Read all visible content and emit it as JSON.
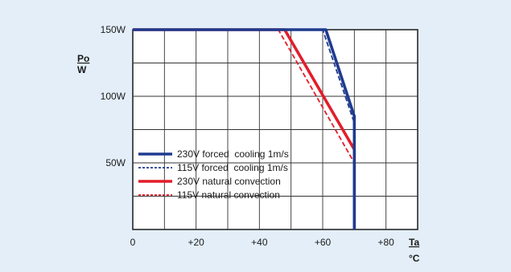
{
  "chart_data": {
    "type": "line",
    "title": "",
    "xlabel": "Ta",
    "xunit": "°C",
    "ylabel": "Po",
    "yunit": "W",
    "xlim": [
      0,
      90
    ],
    "ylim": [
      0,
      150
    ],
    "x_ticks": [
      {
        "value": 0,
        "label": "0"
      },
      {
        "value": 20,
        "label": "+20"
      },
      {
        "value": 40,
        "label": "+40"
      },
      {
        "value": 60,
        "label": "+60"
      },
      {
        "value": 80,
        "label": "+80"
      }
    ],
    "y_ticks": [
      {
        "value": 50,
        "label": "50W"
      },
      {
        "value": 100,
        "label": "100W"
      },
      {
        "value": 150,
        "label": "150W"
      }
    ],
    "grid": true,
    "legend_position": "lower-left",
    "series": [
      {
        "name": "230V forced  cooling 1m/s",
        "color": "#1f3a8f",
        "style": "solid",
        "points": [
          [
            0,
            150
          ],
          [
            61,
            150
          ],
          [
            70,
            85
          ],
          [
            70,
            0
          ]
        ]
      },
      {
        "name": "115V forced  cooling 1m/s",
        "color": "#1f3a8f",
        "style": "dashed",
        "points": [
          [
            0,
            150
          ],
          [
            60,
            150
          ],
          [
            70,
            80
          ],
          [
            70,
            0
          ]
        ]
      },
      {
        "name": "230V natural convection",
        "color": "#e31d2a",
        "style": "solid",
        "points": [
          [
            0,
            150
          ],
          [
            48,
            150
          ],
          [
            70,
            60
          ],
          [
            70,
            0
          ]
        ]
      },
      {
        "name": "115V natural convection",
        "color": "#e31d2a",
        "style": "dashed",
        "points": [
          [
            0,
            150
          ],
          [
            46,
            150
          ],
          [
            70,
            50
          ],
          [
            70,
            0
          ]
        ]
      }
    ]
  }
}
